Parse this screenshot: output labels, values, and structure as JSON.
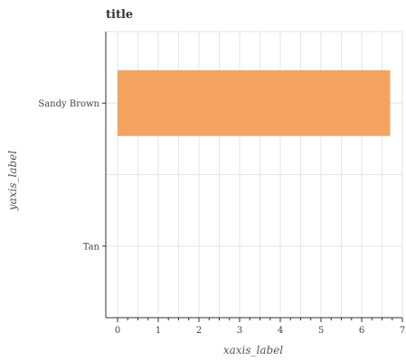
{
  "chart_data": {
    "type": "bar",
    "orientation": "horizontal",
    "title": "title",
    "xlabel": "xaxis_label",
    "ylabel": "yaxis_label",
    "categories": [
      "Sandy Brown",
      "Tan"
    ],
    "values": [
      6.7,
      0
    ],
    "colors": [
      "#f4a460",
      "#d2b48c"
    ],
    "xlim": [
      0,
      7
    ],
    "xticks": [
      0,
      1,
      2,
      3,
      4,
      5,
      6,
      7
    ],
    "grid": true
  }
}
